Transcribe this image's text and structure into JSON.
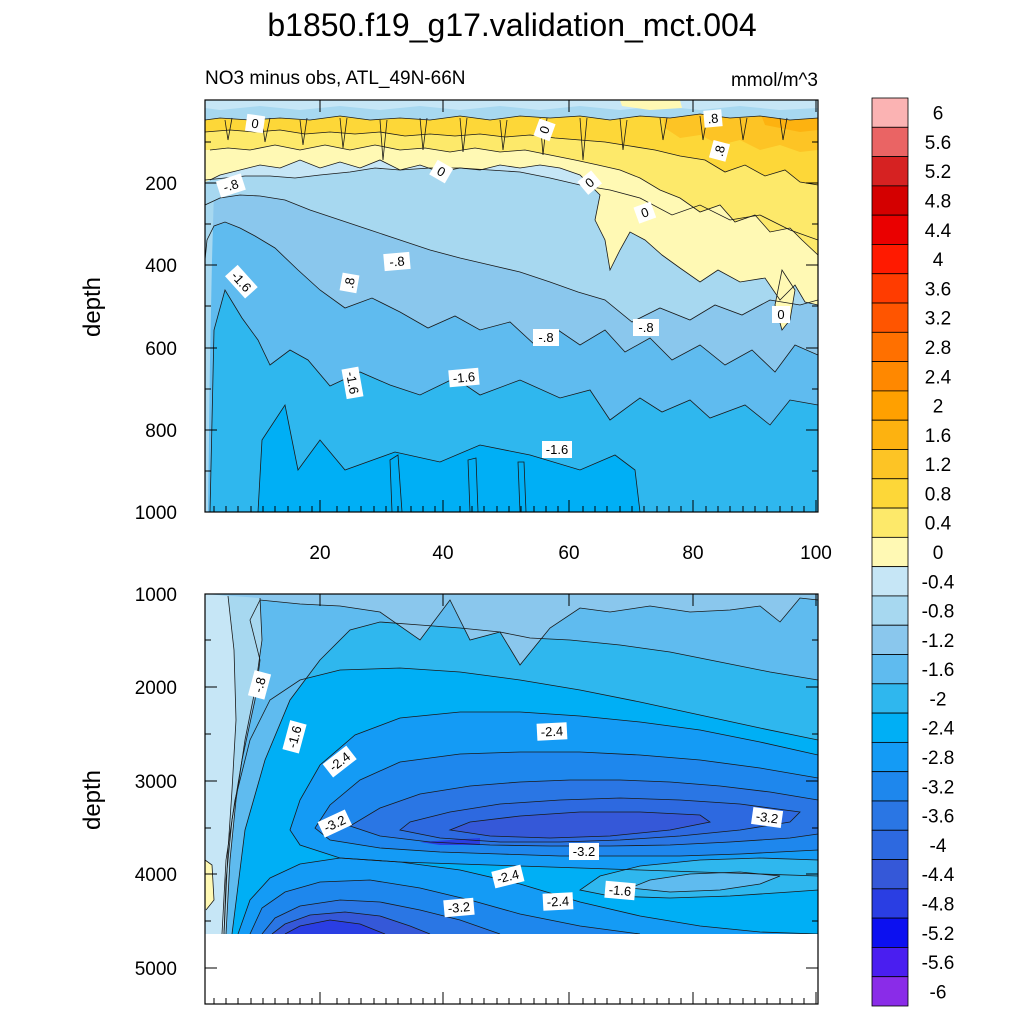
{
  "figure": {
    "title": "b1850.f19_g17.validation_mct.004",
    "subtitle_left": "NO3 minus obs, ATL_49N-66N",
    "subtitle_right": "mmol/m^3"
  },
  "chart_data": [
    {
      "type": "heatmap",
      "panel": "upper",
      "xlim": [
        0,
        101
      ],
      "ylim": [
        1000,
        0
      ],
      "x_ticks": [
        "20",
        "40",
        "60",
        "80",
        "100"
      ],
      "y_ticks": [
        "200",
        "400",
        "600",
        "800",
        "1000"
      ],
      "ylabel": "depth",
      "contour_labels": [
        "0",
        ".8",
        ".8",
        "0",
        "0",
        "-.8",
        "0",
        "0",
        "-1.6",
        ".8",
        "-.8",
        "-.8",
        "-.8",
        "0",
        "-1.6",
        "-1.6",
        "-1.6"
      ]
    },
    {
      "type": "heatmap",
      "panel": "lower",
      "xlim": [
        0,
        101
      ],
      "ylim": [
        5400,
        1000
      ],
      "y_ticks": [
        "1000",
        "2000",
        "3000",
        "4000",
        "5000"
      ],
      "ylabel": "depth",
      "contour_labels": [
        "-.8",
        "-1.6",
        "-2.4",
        "-3.2",
        "-2.4",
        "-3.2",
        "-3.2",
        "-2.4",
        "-1.6",
        "-2.4",
        "-3.2"
      ]
    }
  ],
  "colorbar": {
    "labels": [
      "6",
      "5.6",
      "5.2",
      "4.8",
      "4.4",
      "4",
      "3.6",
      "3.2",
      "2.8",
      "2.4",
      "2",
      "1.6",
      "1.2",
      "0.8",
      "0.4",
      "0",
      "-0.4",
      "-0.8",
      "-1.2",
      "-1.6",
      "-2",
      "-2.4",
      "-2.8",
      "-3.2",
      "-3.6",
      "-4",
      "-4.4",
      "-4.8",
      "-5.2",
      "-5.6",
      "-6"
    ],
    "colors": [
      "#fbb3b3",
      "#ea6464",
      "#d62222",
      "#d40000",
      "#ea0000",
      "#ff1a00",
      "#ff3c00",
      "#ff5500",
      "#ff7000",
      "#ff8800",
      "#ffa000",
      "#fdb210",
      "#fdc425",
      "#fdd738",
      "#fde96a",
      "#fff9b4",
      "#c6e6f6",
      "#a7d8f0",
      "#8ac7ed",
      "#5fbbef",
      "#2fb7ee",
      "#00aff5",
      "#149bf5",
      "#1e87ed",
      "#2a76e4",
      "#2d69e0",
      "#3558d8",
      "#2a3ee3",
      "#0c10f0",
      "#4a1ef0",
      "#8a2ce8"
    ]
  }
}
